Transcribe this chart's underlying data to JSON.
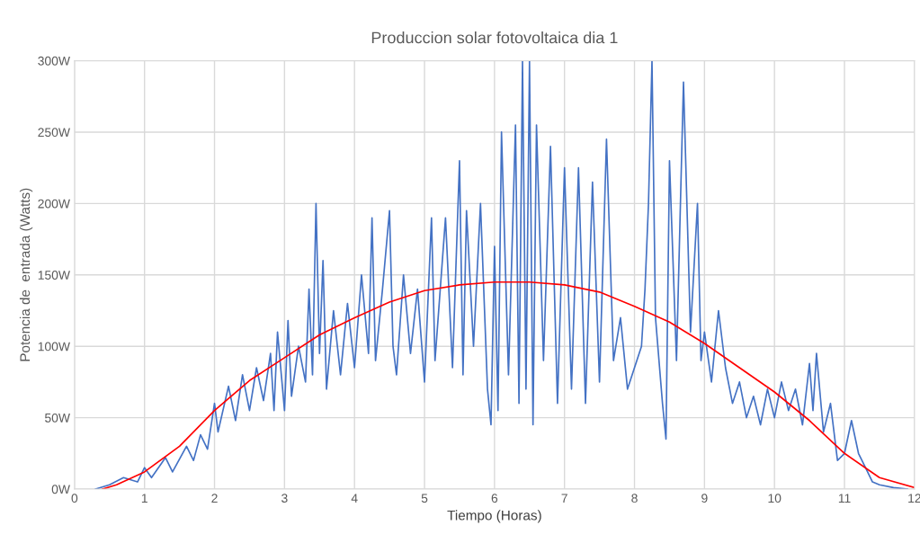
{
  "chart_data": {
    "type": "line",
    "title": "Produccion solar fotovoltaica dia 1",
    "xlabel": "Tiempo (Horas)",
    "ylabel": "Potencia de  entrada (Watts)",
    "xlim": [
      0,
      12
    ],
    "xticks": [
      0,
      1,
      2,
      3,
      4,
      5,
      6,
      7,
      8,
      9,
      10,
      11,
      12
    ],
    "ylim": [
      0,
      300
    ],
    "yticks": [
      {
        "value": 0,
        "label": "0W"
      },
      {
        "value": 50,
        "label": "50W"
      },
      {
        "value": 100,
        "label": "100W"
      },
      {
        "value": 150,
        "label": "150W"
      },
      {
        "value": 200,
        "label": "200W"
      },
      {
        "value": 250,
        "label": "250W"
      },
      {
        "value": 300,
        "label": "300W"
      }
    ],
    "grid": true,
    "marker": "none",
    "line_style": "solid",
    "series": [
      {
        "color": "#4472c4",
        "x": [
          0.3,
          0.5,
          0.7,
          0.9,
          1.0,
          1.1,
          1.3,
          1.4,
          1.6,
          1.7,
          1.8,
          1.9,
          2.0,
          2.05,
          2.2,
          2.3,
          2.4,
          2.5,
          2.6,
          2.7,
          2.8,
          2.85,
          2.9,
          3.0,
          3.05,
          3.1,
          3.2,
          3.3,
          3.35,
          3.4,
          3.45,
          3.5,
          3.55,
          3.6,
          3.7,
          3.8,
          3.9,
          4.0,
          4.1,
          4.2,
          4.25,
          4.3,
          4.4,
          4.5,
          4.55,
          4.6,
          4.7,
          4.8,
          4.9,
          5.0,
          5.1,
          5.15,
          5.3,
          5.4,
          5.5,
          5.55,
          5.6,
          5.7,
          5.8,
          5.9,
          5.95,
          6.0,
          6.05,
          6.1,
          6.2,
          6.3,
          6.35,
          6.4,
          6.45,
          6.5,
          6.55,
          6.6,
          6.7,
          6.8,
          6.9,
          7.0,
          7.1,
          7.2,
          7.3,
          7.4,
          7.5,
          7.6,
          7.7,
          7.8,
          7.9,
          8.0,
          8.1,
          8.15,
          8.2,
          8.25,
          8.3,
          8.4,
          8.45,
          8.5,
          8.6,
          8.7,
          8.8,
          8.9,
          8.95,
          9.0,
          9.1,
          9.2,
          9.3,
          9.4,
          9.5,
          9.6,
          9.7,
          9.8,
          9.9,
          10.0,
          10.1,
          10.2,
          10.3,
          10.4,
          10.5,
          10.55,
          10.6,
          10.7,
          10.8,
          10.9,
          11.0,
          11.1,
          11.2,
          11.3,
          11.4,
          11.5,
          11.7,
          11.9
        ],
        "values": [
          0,
          3,
          8,
          5,
          15,
          8,
          22,
          12,
          30,
          20,
          38,
          28,
          60,
          40,
          72,
          48,
          80,
          55,
          85,
          62,
          95,
          55,
          110,
          55,
          118,
          65,
          100,
          75,
          140,
          80,
          200,
          95,
          160,
          70,
          125,
          80,
          130,
          85,
          150,
          95,
          190,
          90,
          140,
          195,
          100,
          80,
          150,
          95,
          140,
          75,
          190,
          90,
          190,
          85,
          230,
          80,
          195,
          100,
          200,
          70,
          45,
          170,
          55,
          250,
          80,
          255,
          60,
          300,
          70,
          300,
          45,
          255,
          90,
          240,
          60,
          225,
          70,
          225,
          60,
          215,
          75,
          245,
          90,
          120,
          70,
          85,
          100,
          140,
          200,
          300,
          120,
          60,
          35,
          230,
          90,
          285,
          110,
          200,
          90,
          110,
          75,
          125,
          85,
          60,
          75,
          50,
          65,
          45,
          70,
          50,
          75,
          55,
          70,
          45,
          88,
          55,
          95,
          40,
          60,
          20,
          25,
          48,
          25,
          15,
          5,
          3,
          1,
          0
        ]
      },
      {
        "color": "#ff0000",
        "x": [
          0.4,
          0.6,
          1.0,
          1.5,
          2.0,
          2.5,
          3.0,
          3.5,
          4.0,
          4.5,
          5.0,
          5.5,
          6.0,
          6.5,
          7.0,
          7.5,
          8.0,
          8.5,
          9.0,
          9.5,
          10.0,
          10.5,
          11.0,
          11.5,
          12.0
        ],
        "values": [
          0,
          3,
          12,
          30,
          55,
          76,
          92,
          108,
          120,
          131,
          139,
          143,
          145,
          145,
          143,
          138,
          128,
          117,
          102,
          85,
          68,
          48,
          25,
          8,
          1
        ]
      }
    ]
  }
}
